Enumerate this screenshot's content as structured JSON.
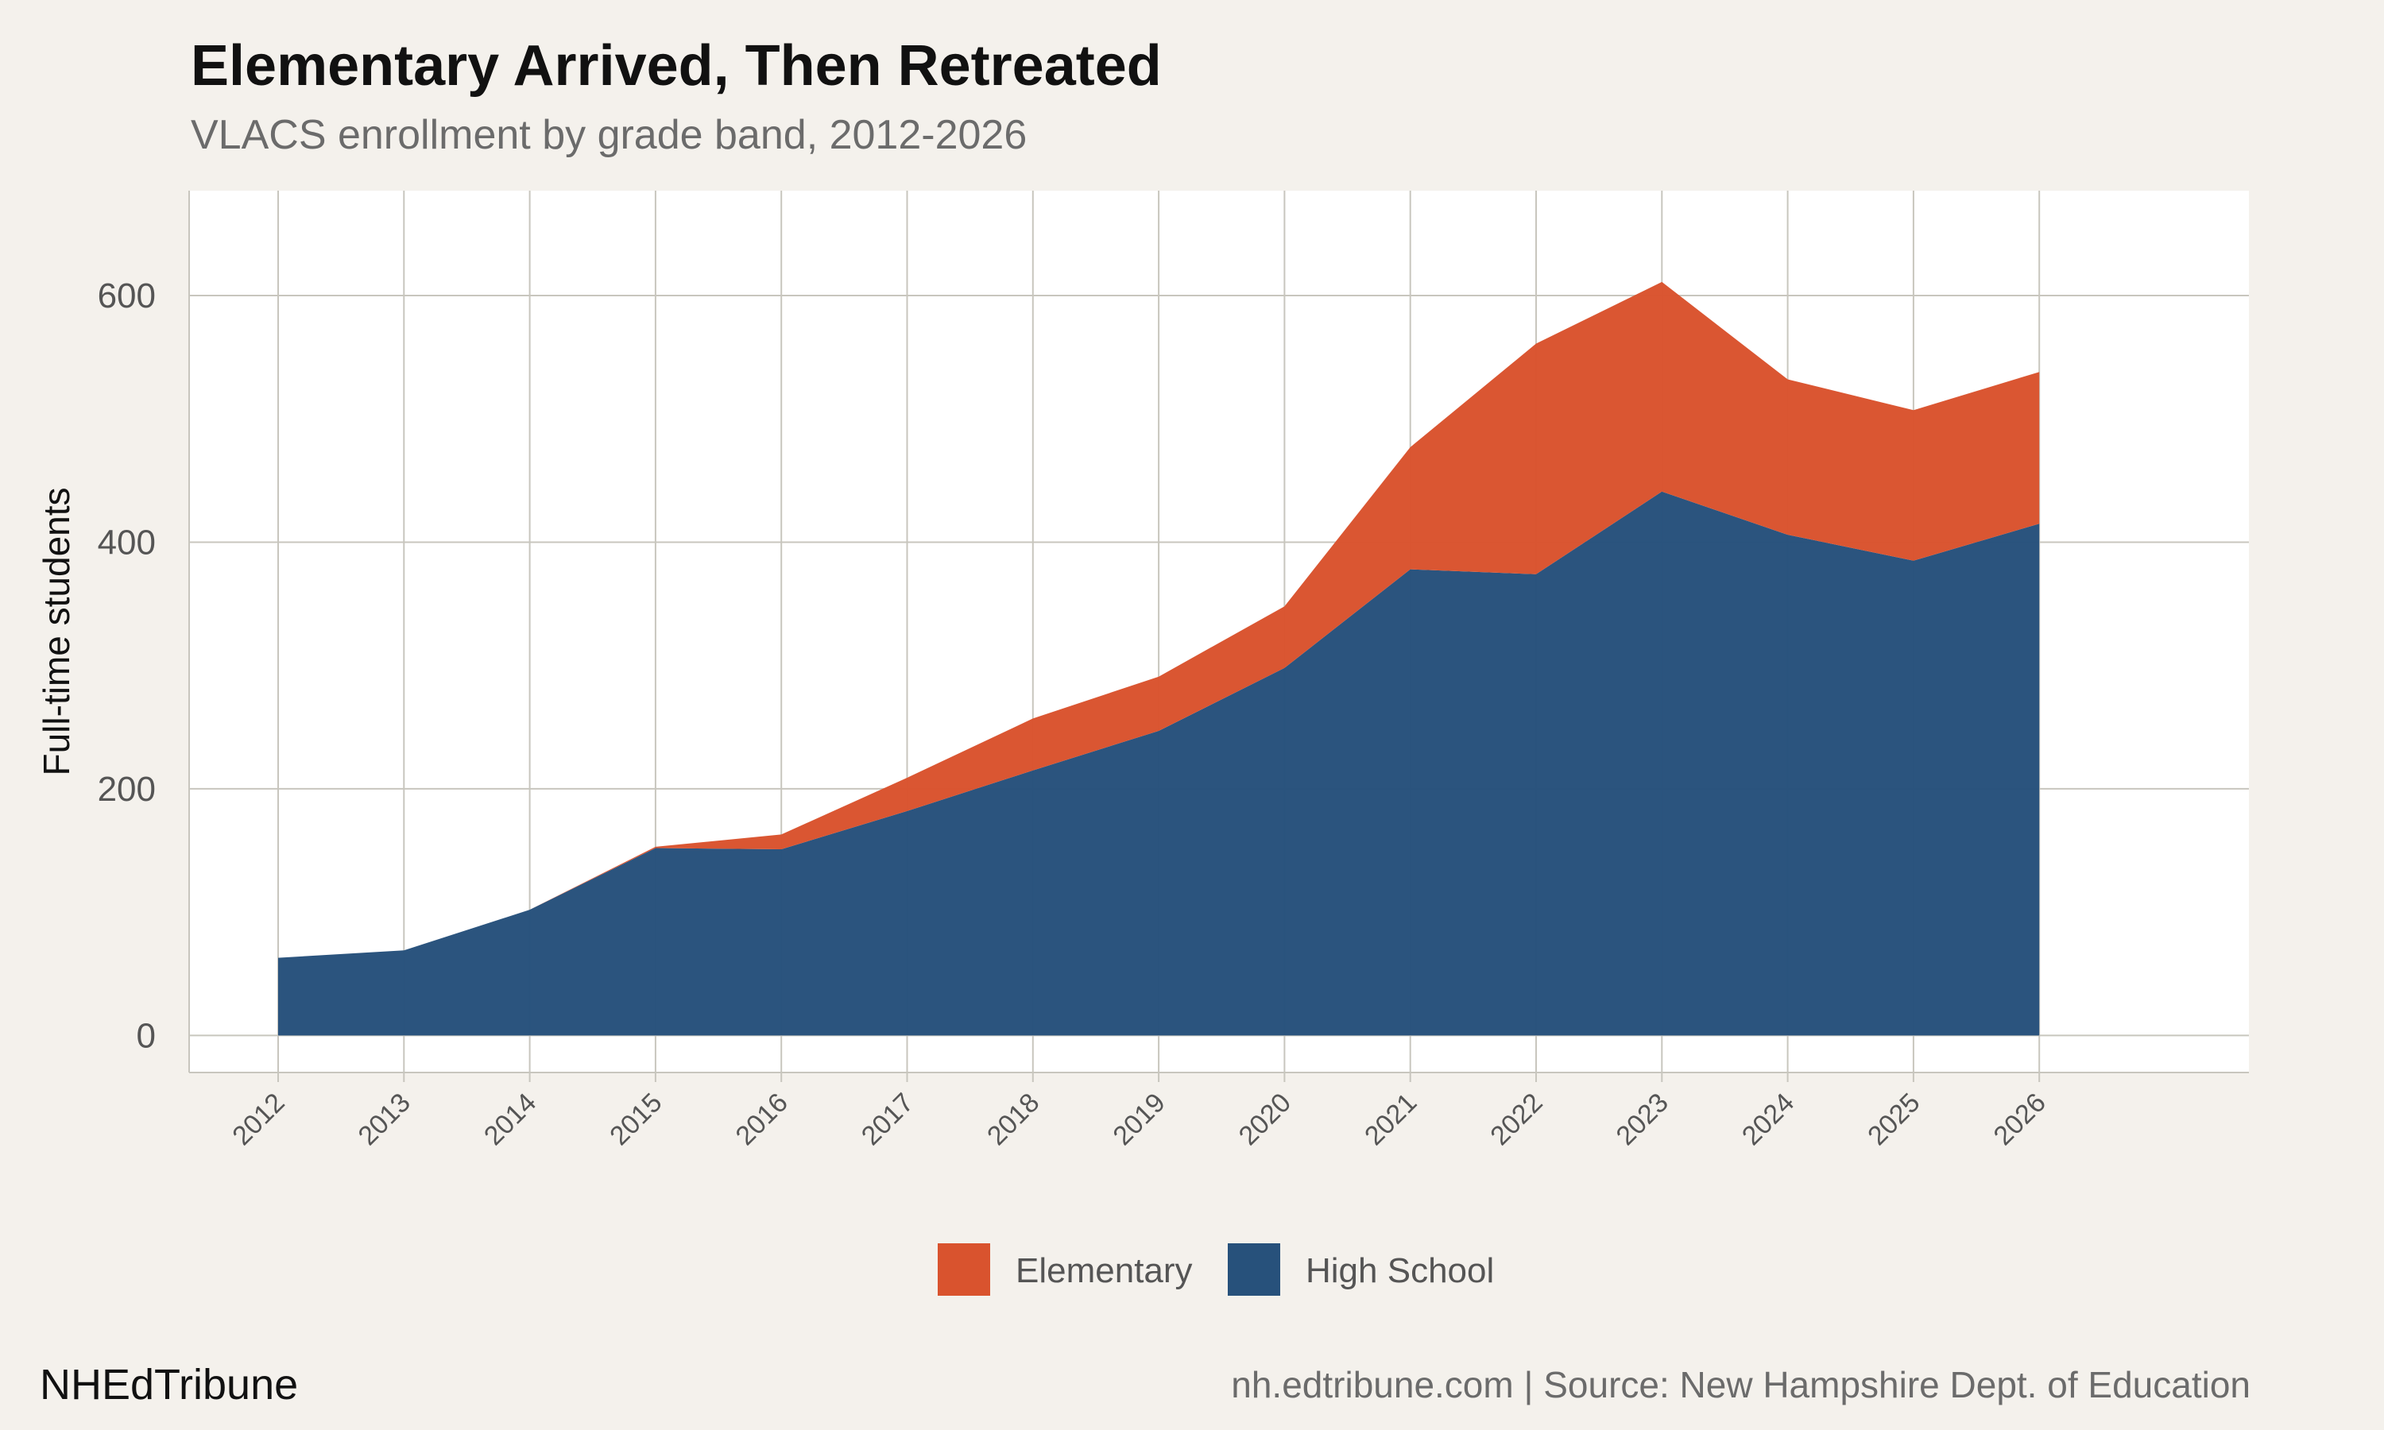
{
  "header": {
    "title": "Elementary Arrived, Then Retreated",
    "subtitle": "VLACS enrollment by grade band, 2012-2026"
  },
  "footer": {
    "brand": "NHEdTribune",
    "source": "nh.edtribune.com | Source: New Hampshire Dept. of Education"
  },
  "colors": {
    "background": "#f4f1ec",
    "panel": "#ffffff",
    "grid": "#c8c6be",
    "elementary": "#d9532e",
    "high_school": "#27517b"
  },
  "chart_data": {
    "type": "area",
    "stacked": true,
    "title": "Elementary Arrived, Then Retreated",
    "subtitle": "VLACS enrollment by grade band, 2012-2026",
    "xlabel": "",
    "ylabel": "Full-time students",
    "x": [
      "2012",
      "2013",
      "2014",
      "2015",
      "2016",
      "2017",
      "2018",
      "2019",
      "2020",
      "2021",
      "2022",
      "2023",
      "2024",
      "2025",
      "2026"
    ],
    "series": [
      {
        "name": "High School",
        "color": "#27517b",
        "values": [
          63,
          69,
          102,
          152,
          151,
          182,
          215,
          247,
          298,
          378,
          374,
          441,
          406,
          385,
          415
        ]
      },
      {
        "name": "Elementary",
        "color": "#d9532e",
        "values": [
          0,
          0,
          0,
          1,
          12,
          27,
          42,
          44,
          50,
          99,
          187,
          170,
          126,
          122,
          123
        ]
      }
    ],
    "legend_order": [
      "Elementary",
      "High School"
    ],
    "legend_position": "bottom",
    "yticks": [
      0,
      200,
      400,
      600
    ],
    "ylim": [
      -30,
      685
    ],
    "grid": true
  }
}
